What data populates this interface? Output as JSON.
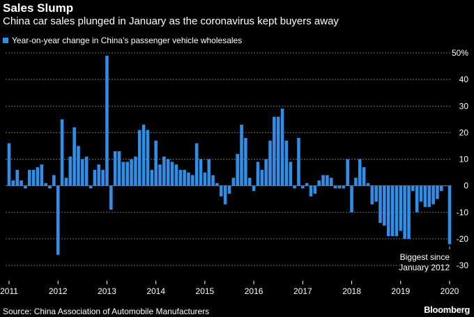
{
  "header": {
    "title": "Sales Slump",
    "subtitle": "China car sales plunged in January as the coronavirus kept buyers away",
    "legend_label": "Year-on-year change in China’s passenger vehicle wholesales"
  },
  "footer": {
    "source": "Source: China Association of Automobile Manufacturers",
    "brand": "Bloomberg"
  },
  "colors": {
    "background": "#000000",
    "bar": "#2f8ee8",
    "grid": "#6e6e6e",
    "text": "#ffffff",
    "annotation_line": "#bbbbbb"
  },
  "chart_data": {
    "type": "bar",
    "title": "Sales Slump",
    "subtitle": "China car sales plunged in January as the coronavirus kept buyers away",
    "series_name": "Year-on-year change in China’s passenger vehicle wholesales",
    "ylim": [
      -30,
      50
    ],
    "yticks": [
      -30,
      -20,
      -10,
      0,
      10,
      20,
      30,
      40,
      50
    ],
    "ytick_labels": [
      "-30",
      "-20",
      "-10",
      "0",
      "10",
      "20",
      "30",
      "40",
      "50%"
    ],
    "x_start": "2011-01",
    "xticks": [
      "2011",
      "2012",
      "2013",
      "2014",
      "2015",
      "2016",
      "2017",
      "2018",
      "2019",
      "2020"
    ],
    "grid": true,
    "legend_position": "top-left",
    "annotation": {
      "text_line1": "Biggest since",
      "text_line2": "January 2012",
      "index": 108
    },
    "values": [
      16,
      2,
      6,
      2,
      -1,
      6,
      6,
      7,
      8,
      1,
      -1,
      4,
      -26,
      25,
      3,
      11,
      22,
      15,
      10,
      11,
      -1,
      6,
      8,
      6,
      49,
      -9,
      13,
      13,
      9,
      9,
      10,
      11,
      21,
      23,
      21,
      6,
      17,
      8,
      11,
      10,
      9,
      8,
      6,
      6,
      5,
      4,
      16,
      10,
      5,
      10,
      4,
      1,
      -4,
      -7,
      -3,
      3,
      12,
      23,
      18,
      3,
      -2,
      9,
      6,
      10,
      17,
      26,
      26,
      29,
      17,
      9,
      -1,
      18,
      -1,
      1,
      -4,
      -3,
      2,
      4,
      4,
      3,
      -1,
      -1,
      -1,
      10,
      -10,
      3,
      10,
      7,
      1,
      -7,
      -6,
      -14,
      -15,
      -19,
      -19,
      -19,
      -17,
      -20,
      -20,
      -2,
      -10,
      -6,
      -8,
      -8,
      -7,
      -5,
      -2,
      0,
      -22
    ]
  }
}
